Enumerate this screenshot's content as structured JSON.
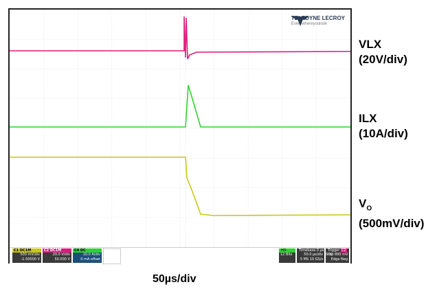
{
  "brand": {
    "name": "TELEDYNE LECROY",
    "tagline": "Everywhereyoulook"
  },
  "channels": [
    {
      "id": "C1",
      "name": "VLX",
      "scale": "(20V/div)",
      "color": "#e0197d"
    },
    {
      "id": "C2",
      "name": "ILX",
      "scale": "(10A/div)",
      "color": "#2ed42e"
    },
    {
      "id": "C3",
      "name_main": "V",
      "name_sub": "O",
      "scale": "(500mV/div)",
      "color": "#c8c814"
    }
  ],
  "timebase_label": "50µs/div",
  "status": {
    "c1": {
      "tag": "C1",
      "tag2": "DC1M",
      "line1": "500 mV/div",
      "line2": "-1.50000 V"
    },
    "c2": {
      "tag": "C2",
      "tag2": "DC1M",
      "line1": "20.0 V/div",
      "line2": "50.000 V"
    },
    "c4": {
      "tag": "C4",
      "tag2": "DC",
      "line1": "10.0 A/div",
      "line2": "0 mA offset"
    },
    "hd": {
      "tag": "HD",
      "line1": "12 Bits"
    },
    "timebase": {
      "title": "Timebase",
      "offset": "0 µs",
      "div": "50.0 µs/div",
      "pts": "5 MS",
      "rate": "10 GS/s"
    },
    "trigger": {
      "title": "Trigger",
      "tag": "C2",
      "tag2": "DC",
      "mode": "Stop",
      "level": "895 mV",
      "type": "Edge",
      "slope": "Neg"
    }
  }
}
